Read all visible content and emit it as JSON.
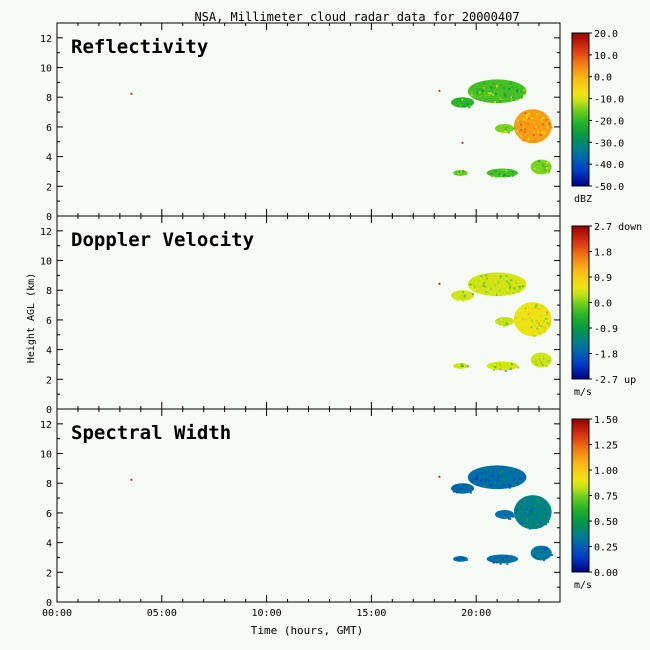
{
  "figure": {
    "title": "NSA, Millimeter cloud radar data for 20000407",
    "xlabel": "Time (hours, GMT)",
    "ylabel": "Height AGL (km)",
    "background": "#f7fbf6"
  },
  "chart_data": [
    {
      "type": "heatmap",
      "title": "Reflectivity",
      "x_range_hours": [
        0,
        24
      ],
      "ylim": [
        0,
        13
      ],
      "y_ticks": [
        "0",
        "2",
        "4",
        "6",
        "8",
        "10",
        "12"
      ],
      "colorbar": {
        "unit": "dBZ",
        "range": [
          -50,
          20
        ],
        "ticks": [
          "20.0",
          "10.0",
          "0.0",
          "-10.0",
          "-20.0",
          "-30.0",
          "-40.0",
          "-50.0"
        ]
      },
      "echoes": [
        {
          "x0": 19.6,
          "x1": 22.4,
          "y0": 7.6,
          "y1": 9.2,
          "level": 0.45
        },
        {
          "x0": 18.8,
          "x1": 19.9,
          "y0": 7.3,
          "y1": 8.0,
          "level": 0.42
        },
        {
          "x0": 21.8,
          "x1": 23.6,
          "y0": 4.9,
          "y1": 7.2,
          "level": 0.75
        },
        {
          "x0": 20.9,
          "x1": 21.8,
          "y0": 5.6,
          "y1": 6.2,
          "level": 0.5
        },
        {
          "x0": 18.9,
          "x1": 19.6,
          "y0": 2.7,
          "y1": 3.1,
          "level": 0.48
        },
        {
          "x0": 20.5,
          "x1": 22.0,
          "y0": 2.6,
          "y1": 3.2,
          "level": 0.45
        },
        {
          "x0": 22.6,
          "x1": 23.6,
          "y0": 2.8,
          "y1": 3.8,
          "level": 0.5
        }
      ],
      "specks": [
        {
          "x": 3.5,
          "y": 8.3
        },
        {
          "x": 18.2,
          "y": 8.5
        },
        {
          "x": 19.3,
          "y": 5.0
        }
      ]
    },
    {
      "type": "heatmap",
      "title": "Doppler Velocity",
      "x_range_hours": [
        0,
        24
      ],
      "ylim": [
        0,
        13
      ],
      "y_ticks": [
        "0",
        "2",
        "4",
        "6",
        "8",
        "10",
        "12"
      ],
      "colorbar": {
        "unit": "m/s",
        "range": [
          -2.7,
          2.7
        ],
        "ticks": [
          "2.7 down",
          "1.8",
          "0.9",
          "0.0",
          "-0.9",
          "-1.8",
          "-2.7 up"
        ]
      },
      "echoes": [
        {
          "x0": 19.6,
          "x1": 22.4,
          "y0": 7.6,
          "y1": 9.2,
          "level": 0.56
        },
        {
          "x0": 18.8,
          "x1": 19.9,
          "y0": 7.3,
          "y1": 8.0,
          "level": 0.56
        },
        {
          "x0": 21.8,
          "x1": 23.6,
          "y0": 4.9,
          "y1": 7.2,
          "level": 0.6
        },
        {
          "x0": 20.9,
          "x1": 21.8,
          "y0": 5.6,
          "y1": 6.2,
          "level": 0.55
        },
        {
          "x0": 18.9,
          "x1": 19.6,
          "y0": 2.7,
          "y1": 3.1,
          "level": 0.56
        },
        {
          "x0": 20.5,
          "x1": 22.0,
          "y0": 2.6,
          "y1": 3.2,
          "level": 0.56
        },
        {
          "x0": 22.6,
          "x1": 23.6,
          "y0": 2.8,
          "y1": 3.8,
          "level": 0.56
        }
      ],
      "specks": [
        {
          "x": 18.2,
          "y": 8.5
        }
      ]
    },
    {
      "type": "heatmap",
      "title": "Spectral Width",
      "x_range_hours": [
        0,
        24
      ],
      "ylim": [
        0,
        13
      ],
      "y_ticks": [
        "0",
        "2",
        "4",
        "6",
        "8",
        "10",
        "12"
      ],
      "colorbar": {
        "unit": "m/s",
        "range": [
          0,
          1.5
        ],
        "ticks": [
          "1.50",
          "1.25",
          "1.00",
          "0.75",
          "0.50",
          "0.25",
          "0.00"
        ]
      },
      "echoes": [
        {
          "x0": 19.6,
          "x1": 22.4,
          "y0": 7.6,
          "y1": 9.2,
          "level": 0.2
        },
        {
          "x0": 18.8,
          "x1": 19.9,
          "y0": 7.3,
          "y1": 8.0,
          "level": 0.18
        },
        {
          "x0": 21.8,
          "x1": 23.6,
          "y0": 4.9,
          "y1": 7.2,
          "level": 0.25
        },
        {
          "x0": 20.9,
          "x1": 21.8,
          "y0": 5.6,
          "y1": 6.2,
          "level": 0.2
        },
        {
          "x0": 18.9,
          "x1": 19.6,
          "y0": 2.7,
          "y1": 3.1,
          "level": 0.2
        },
        {
          "x0": 20.5,
          "x1": 22.0,
          "y0": 2.6,
          "y1": 3.2,
          "level": 0.2
        },
        {
          "x0": 22.6,
          "x1": 23.6,
          "y0": 2.8,
          "y1": 3.8,
          "level": 0.22
        }
      ],
      "specks": [
        {
          "x": 3.5,
          "y": 8.3
        },
        {
          "x": 18.2,
          "y": 8.5
        }
      ]
    }
  ],
  "x_axis": {
    "ticks": [
      {
        "hour": 0,
        "label": "00:00"
      },
      {
        "hour": 5,
        "label": "05:00"
      },
      {
        "hour": 10,
        "label": "10:00"
      },
      {
        "hour": 15,
        "label": "15:00"
      },
      {
        "hour": 20,
        "label": "20:00"
      }
    ]
  }
}
